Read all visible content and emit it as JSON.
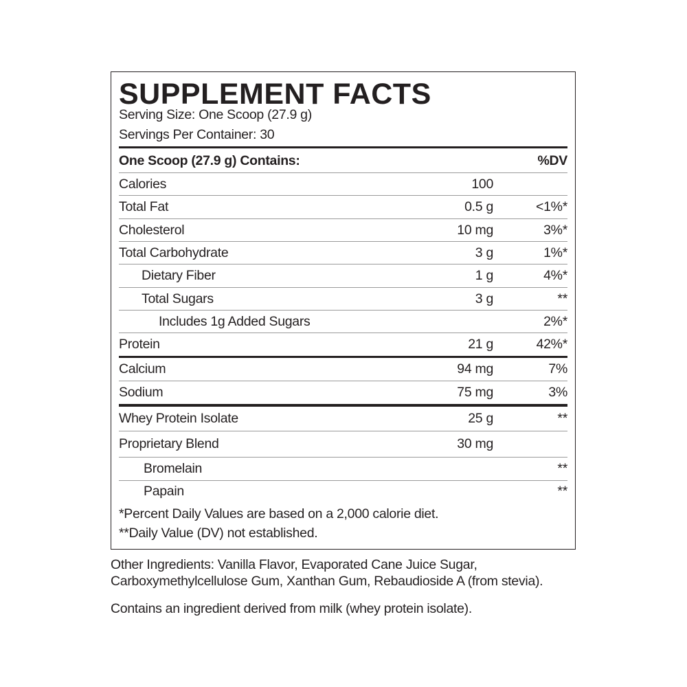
{
  "label": {
    "title": "SUPPLEMENT FACTS",
    "serving_size": "Serving Size: One Scoop (27.9 g)",
    "servings_per_container": "Servings Per Container: 30",
    "header": {
      "name": "One Scoop (27.9 g) Contains:",
      "dv": "%DV"
    },
    "rows": [
      {
        "name": "Calories",
        "amount": "100",
        "dv": ""
      },
      {
        "name": "Total Fat",
        "amount": "0.5 g",
        "dv": "<1%*"
      },
      {
        "name": "Cholesterol",
        "amount": "10 mg",
        "dv": "3%*"
      },
      {
        "name": "Total Carbohydrate",
        "amount": "3 g",
        "dv": "1%*"
      },
      {
        "name": "Dietary Fiber",
        "amount": "1 g",
        "dv": "4%*"
      },
      {
        "name": "Total Sugars",
        "amount": "3 g",
        "dv": "**"
      },
      {
        "name": "Includes 1g Added Sugars",
        "amount": "",
        "dv": "2%*"
      },
      {
        "name": "Protein",
        "amount": "21 g",
        "dv": "42%*"
      },
      {
        "name": "Calcium",
        "amount": "94 mg",
        "dv": "7%"
      },
      {
        "name": "Sodium",
        "amount": "75 mg",
        "dv": "3%"
      },
      {
        "name": "Whey Protein Isolate",
        "amount": "25 g",
        "dv": "**"
      },
      {
        "name": "Proprietary Blend",
        "amount": "30 mg",
        "dv": ""
      },
      {
        "name": "Bromelain",
        "amount": "",
        "dv": "**"
      },
      {
        "name": "Papain",
        "amount": "",
        "dv": "**"
      }
    ],
    "footnotes": [
      "*Percent Daily Values are based on a 2,000 calorie diet.",
      "**Daily Value (DV) not established."
    ]
  },
  "other_ingredients": "Other Ingredients: Vanilla Flavor, Evaporated Cane Juice Sugar, Carboxymethylcellulose Gum, Xanthan Gum, Rebaudioside A (from stevia).",
  "allergen": "Contains an ingredient derived from milk (whey protein isolate)."
}
